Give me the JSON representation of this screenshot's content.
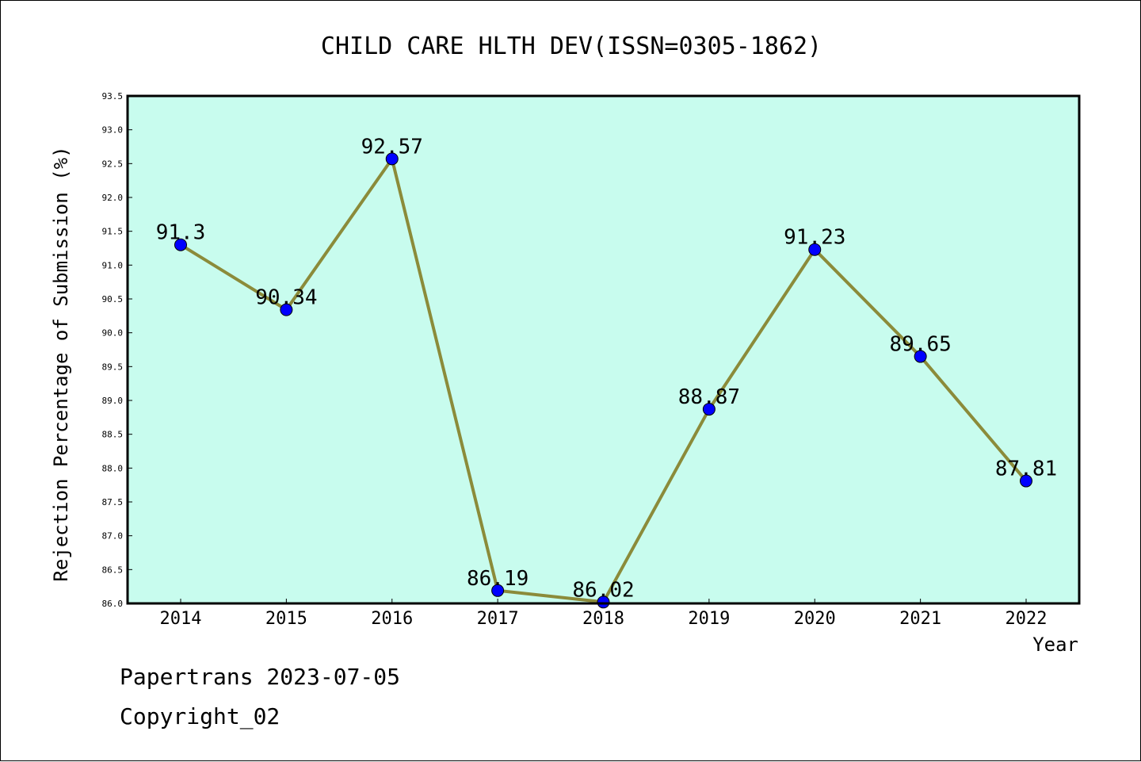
{
  "chart_data": {
    "type": "line",
    "title": "CHILD CARE HLTH DEV(ISSN=0305-1862)",
    "xlabel": "Year",
    "ylabel": "Rejection Percentage of Submission (%)",
    "categories": [
      "2014",
      "2015",
      "2016",
      "2017",
      "2018",
      "2019",
      "2020",
      "2021",
      "2022"
    ],
    "series": [
      {
        "values": [
          91.3,
          90.34,
          92.57,
          86.19,
          86.02,
          88.87,
          91.23,
          89.65,
          87.81
        ],
        "labels": [
          "91.3",
          "90.34",
          "92.57",
          "86.19",
          "86.02",
          "88.87",
          "91.23",
          "89.65",
          "87.81"
        ]
      }
    ],
    "ylim": [
      86.0,
      93.5
    ],
    "yticks": [
      "86.0",
      "86.5",
      "87.0",
      "87.5",
      "88.0",
      "88.5",
      "89.0",
      "89.5",
      "90.0",
      "90.5",
      "91.0",
      "91.5",
      "92.0",
      "92.5",
      "93.0",
      "93.5"
    ],
    "grid": false,
    "colors": {
      "plot_background": "#c8fcee",
      "line": "#8b8b3a",
      "marker": "#0000ff"
    }
  },
  "footer": {
    "line1": "Papertrans 2023-07-05",
    "line2": "Copyright_02"
  }
}
